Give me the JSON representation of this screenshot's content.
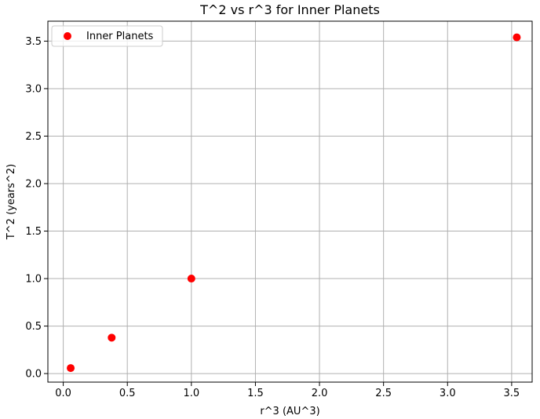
{
  "chart_data": {
    "type": "scatter",
    "title": "T^2 vs r^3 for Inner Planets",
    "xlabel": "r^3 (AU^3)",
    "ylabel": "T^2 (years^2)",
    "xlim": [
      -0.12,
      3.66
    ],
    "ylim": [
      -0.09,
      3.71
    ],
    "xticks": [
      0.0,
      0.5,
      1.0,
      1.5,
      2.0,
      2.5,
      3.0,
      3.5
    ],
    "xtick_labels": [
      "0.0",
      "0.5",
      "1.0",
      "1.5",
      "2.0",
      "2.5",
      "3.0",
      "3.5"
    ],
    "yticks": [
      0.0,
      0.5,
      1.0,
      1.5,
      2.0,
      2.5,
      3.0,
      3.5
    ],
    "ytick_labels": [
      "0.0",
      "0.5",
      "1.0",
      "1.5",
      "2.0",
      "2.5",
      "3.0",
      "3.5"
    ],
    "grid": true,
    "legend_position": "upper-left",
    "series": [
      {
        "name": "Inner Planets",
        "color": "#ff0000",
        "marker": "circle",
        "x": [
          0.058,
          0.378,
          1.0,
          3.54
        ],
        "y": [
          0.058,
          0.378,
          1.0,
          3.54
        ]
      }
    ]
  }
}
